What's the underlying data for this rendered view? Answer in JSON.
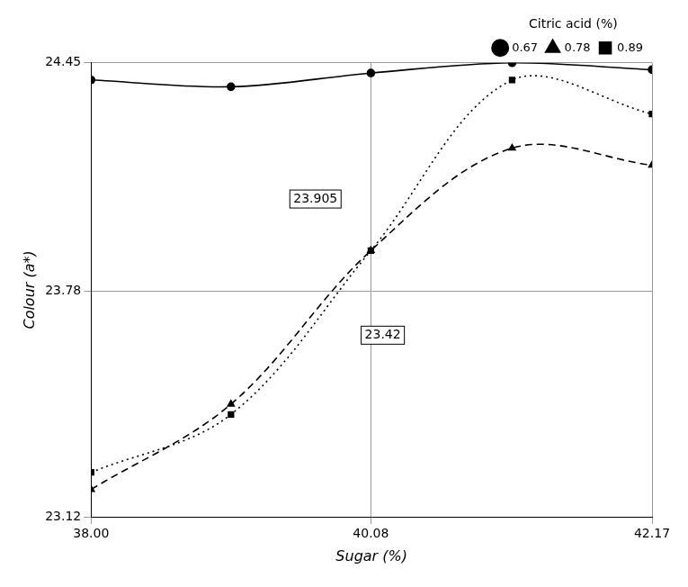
{
  "chart_data": {
    "type": "line",
    "x_label": "Sugar (%)",
    "y_label": "Colour (a*)",
    "legend_title": "Citric acid (%)",
    "annotations": [
      "23.905",
      "23.42"
    ],
    "x": [
      38.0,
      39.04,
      40.08,
      41.13,
      42.17
    ],
    "series": [
      {
        "name": "0.67",
        "color": "#000000",
        "line_style": "solid",
        "marker": "circle",
        "values": [
          24.4,
          24.38,
          24.42,
          24.45,
          24.43
        ]
      },
      {
        "name": "0.78",
        "color": "#000000",
        "line_style": "dashed",
        "marker": "triangle",
        "values": [
          23.2,
          23.45,
          23.9,
          24.2,
          24.15
        ]
      },
      {
        "name": "0.89",
        "color": "#000000",
        "line_style": "dotted",
        "marker": "rect",
        "values": [
          23.25,
          23.42,
          23.9,
          24.4,
          24.3
        ]
      }
    ],
    "xlim": [
      38.0,
      42.17
    ],
    "xticks": [
      {
        "value": 38.0,
        "label": "38.00"
      },
      40.08,
      42.17
    ],
    "ylim": [
      23.12,
      24.45
    ],
    "yticks": [
      23.12,
      23.78,
      24.45
    ],
    "grid": true,
    "legend": "top-right"
  }
}
